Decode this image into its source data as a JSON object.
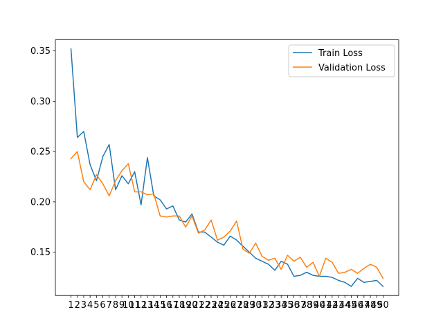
{
  "chart_data": {
    "type": "line",
    "title": "",
    "xlabel": "",
    "ylabel": "",
    "x": [
      1,
      2,
      3,
      4,
      5,
      6,
      7,
      8,
      9,
      10,
      11,
      12,
      13,
      14,
      15,
      16,
      17,
      18,
      19,
      20,
      21,
      22,
      23,
      24,
      25,
      26,
      27,
      28,
      29,
      30,
      31,
      32,
      33,
      34,
      35,
      36,
      37,
      38,
      39,
      40,
      41,
      42,
      43,
      44,
      45,
      46,
      47,
      48,
      49,
      50
    ],
    "ylim": [
      0.107,
      0.361
    ],
    "yticks": [
      0.15,
      0.2,
      0.25,
      0.3,
      0.35
    ],
    "ytick_labels": [
      "0.15",
      "0.20",
      "0.25",
      "0.30",
      "0.35"
    ],
    "grid": false,
    "legend_position": "top-right",
    "series": [
      {
        "name": "Train Loss",
        "color": "#1f77b4",
        "values": [
          0.352,
          0.264,
          0.27,
          0.237,
          0.221,
          0.245,
          0.257,
          0.212,
          0.226,
          0.218,
          0.23,
          0.197,
          0.244,
          0.206,
          0.202,
          0.193,
          0.196,
          0.182,
          0.18,
          0.188,
          0.17,
          0.17,
          0.165,
          0.16,
          0.157,
          0.166,
          0.162,
          0.156,
          0.15,
          0.144,
          0.141,
          0.138,
          0.132,
          0.141,
          0.138,
          0.126,
          0.127,
          0.13,
          0.127,
          0.126,
          0.126,
          0.125,
          0.122,
          0.12,
          0.116,
          0.124,
          0.12,
          0.121,
          0.122,
          0.116
        ]
      },
      {
        "name": "Validation Loss",
        "color": "#ff7f0e",
        "values": [
          0.243,
          0.25,
          0.22,
          0.212,
          0.227,
          0.218,
          0.206,
          0.221,
          0.231,
          0.238,
          0.21,
          0.21,
          0.207,
          0.208,
          0.186,
          0.185,
          0.186,
          0.186,
          0.175,
          0.186,
          0.169,
          0.172,
          0.182,
          0.162,
          0.165,
          0.171,
          0.181,
          0.153,
          0.149,
          0.159,
          0.146,
          0.142,
          0.144,
          0.133,
          0.147,
          0.141,
          0.145,
          0.135,
          0.14,
          0.126,
          0.144,
          0.14,
          0.129,
          0.13,
          0.133,
          0.129,
          0.134,
          0.138,
          0.135,
          0.124
        ]
      }
    ]
  }
}
